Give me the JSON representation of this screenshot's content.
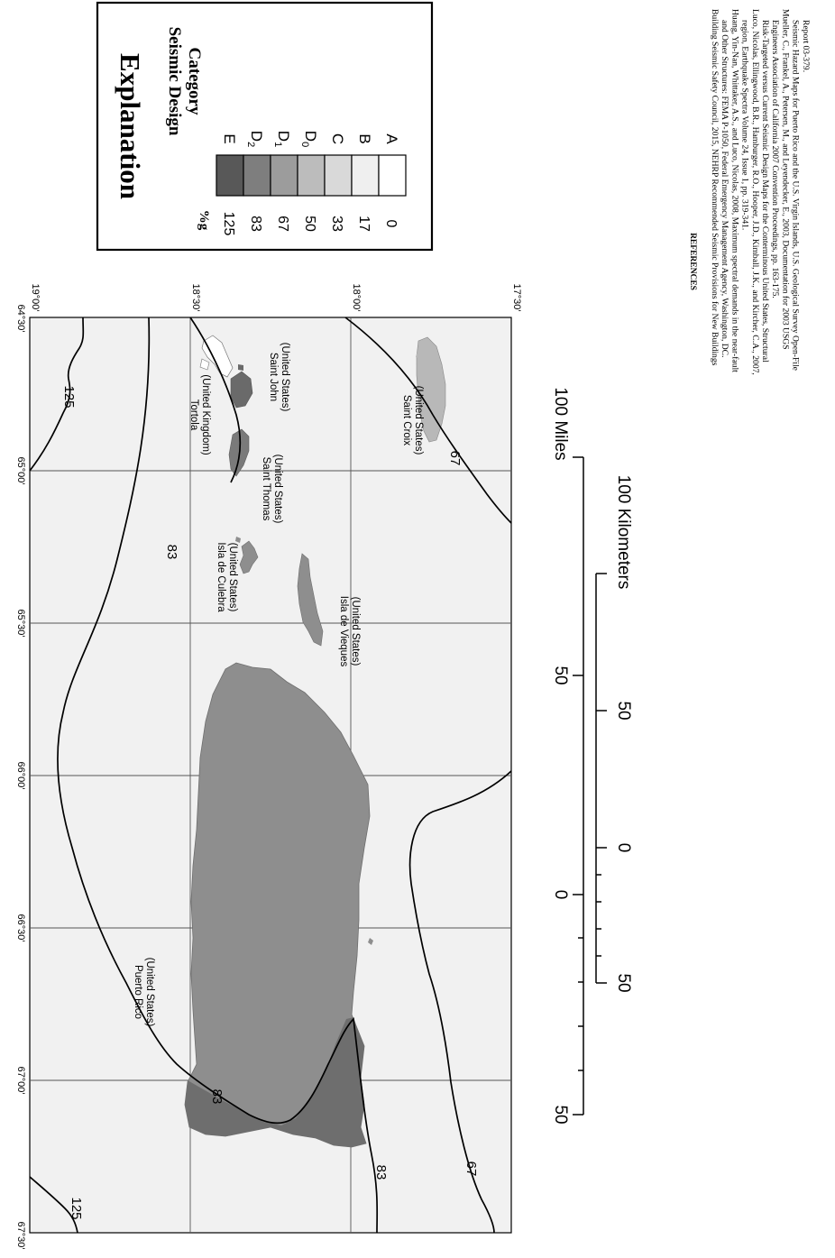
{
  "explanation": {
    "title": "Explanation",
    "subtitle_line1": "Seismic Design",
    "subtitle_line2": "Category",
    "unit_label": "%g",
    "categories": [
      {
        "value": "125",
        "label": "E",
        "sub": "",
        "color": "#585858"
      },
      {
        "value": "83",
        "label": "D",
        "sub": "2",
        "color": "#7e7e7e"
      },
      {
        "value": "67",
        "label": "D",
        "sub": "1",
        "color": "#9c9c9c"
      },
      {
        "value": "50",
        "label": "D",
        "sub": "0",
        "color": "#bcbcbc"
      },
      {
        "value": "33",
        "label": "C",
        "sub": "",
        "color": "#d9d9d9"
      },
      {
        "value": "17",
        "label": "B",
        "sub": "",
        "color": "#efefef"
      },
      {
        "value": "0",
        "label": "A",
        "sub": "",
        "color": "#ffffff"
      }
    ]
  },
  "map": {
    "background_color": "#f1f1f1",
    "longitude_labels": [
      "64°30'",
      "65°00'",
      "65°30'",
      "66°00'",
      "66°30'",
      "67°00'",
      "67°30'"
    ],
    "latitude_labels": [
      "19°00'",
      "18°30'",
      "18°00'",
      "17°30'"
    ],
    "contour_labels": {
      "c125_a": "125",
      "c125_b": "125",
      "c83_a": "83",
      "c83_b": "83",
      "c83_c": "83",
      "c67_a": "67",
      "c67_b": "67"
    },
    "places": {
      "tortola": [
        "Tortola",
        "(United Kingdom)"
      ],
      "saint_john": [
        "Saint John",
        "(United States)"
      ],
      "saint_thomas": [
        "Saint Thomas",
        "(United States)"
      ],
      "culebra": [
        "Isla de Culebra",
        "(United States)"
      ],
      "vieques": [
        "Isla de Vieques",
        "(United States)"
      ],
      "saint_croix": [
        "Saint Croix",
        "(United States)"
      ],
      "puerto_rico": [
        "Puerto Rico",
        "(United States)"
      ]
    }
  },
  "scale": {
    "miles_title": "100 Miles",
    "miles_ticks": [
      "50",
      "0",
      "50"
    ],
    "km_title": "100 Kilometers",
    "km_ticks": [
      "50",
      "0",
      "50"
    ]
  },
  "references": {
    "heading": "REFERENCES",
    "lines": [
      "Building Seismic Safety Council, 2015, NEHRP Recommended Seismic Provisions for New Buildings",
      "and Other Structures: FEMA P-1050, Federal Emergency Management Agency, Washington, DC.",
      "Huang, Yin-Nan, Whittaker, A.S., and Luco, Nicolas, 2008, Maximum spectral demands in the near-fault",
      "region, Earthquake Spectra Volume 24, Issue 1, pp. 319-341.",
      "Luco, Nicolas, Ellingwood, B.R., Hamburger, R.O., Hooper, J.D., Kimball, J.K., and Kircher, C.A., 2007,",
      "Risk-Targeted versus Current Seismic Design Maps for the Conterminous United States, Structural",
      "Engineers Association of California 2007 Convention Proceedings, pp. 163-175.",
      "Mueller, C., Frankel, A., Petersen, M., and Leyendecker, E., 2003, Documentation for 2003 USGS",
      "Seismic Hazard Maps for Puerto Rico and the U.S. Virgin Islands, U.S. Geological Survey Open-File",
      "Report 03-379."
    ]
  }
}
